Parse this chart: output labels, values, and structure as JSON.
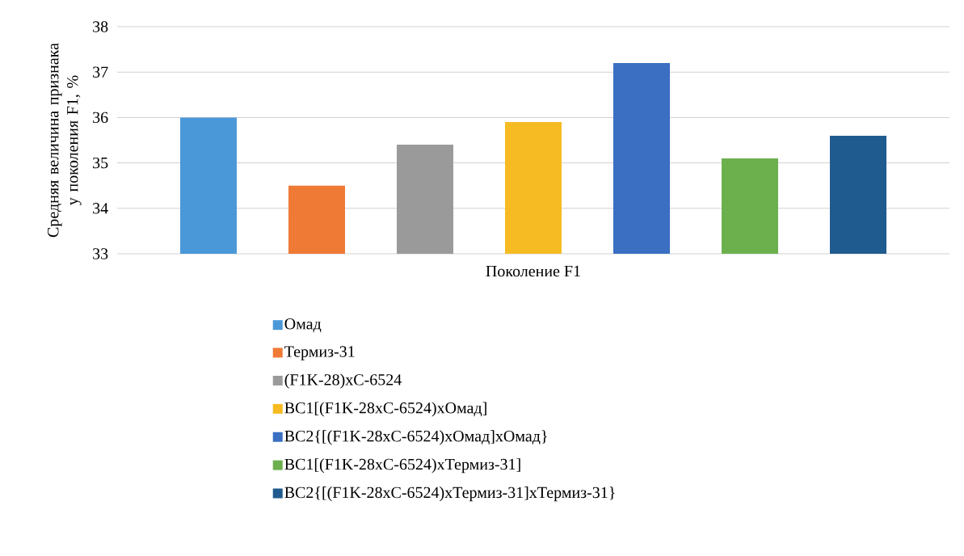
{
  "chart_data": {
    "type": "bar",
    "ylabel": "Средняя величина признака у поколения F1, %",
    "categories": [
      "Поколение F1"
    ],
    "series": [
      {
        "name": "Омад",
        "color": "#4a98d8",
        "values": [
          36.0
        ]
      },
      {
        "name": "Термиз-31",
        "color": "#ef7a36",
        "values": [
          34.5
        ]
      },
      {
        "name": "(F1K-28)xC-6524",
        "color": "#9a9a9a",
        "values": [
          35.4
        ]
      },
      {
        "name": "BC1[(F1K-28xC-6524)xОмад]",
        "color": "#f6bb22",
        "values": [
          35.9
        ]
      },
      {
        "name": "BC2{[(F1K-28xC-6524)xОмад]xОмад}",
        "color": "#3a6fc2",
        "values": [
          37.2
        ]
      },
      {
        "name": "BC1[(F1K-28xC-6524)xТермиз-31]",
        "color": "#6cb04e",
        "values": [
          35.1
        ]
      },
      {
        "name": "BC2{[(F1K-28xC-6524)xТермиз-31]xТермиз-31}",
        "color": "#1f5b8e",
        "values": [
          35.6
        ]
      }
    ],
    "ylim": [
      33,
      38
    ],
    "yticks": [
      33,
      34,
      35,
      36,
      37,
      38
    ],
    "grid": "y",
    "legend": "bottom"
  }
}
